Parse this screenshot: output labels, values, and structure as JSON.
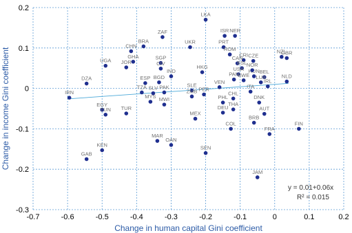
{
  "chart_data": {
    "type": "scatter",
    "title": "",
    "xlabel": "Change in human capital Gini coefficient",
    "ylabel": "Change in income Gini coefficient",
    "xlim": [
      -0.7,
      0.2
    ],
    "ylim": [
      -0.3,
      0.2
    ],
    "xticks": [
      -0.7,
      -0.6,
      -0.5,
      -0.4,
      -0.3,
      -0.2,
      -0.1,
      0,
      0.1,
      0.2
    ],
    "yticks": [
      -0.3,
      -0.2,
      -0.1,
      0,
      0.1,
      0.2
    ],
    "xtick_labels": [
      "-0.7",
      "-0.6",
      "-0.5",
      "-0.4",
      "-0.3",
      "-0.2",
      "-0.1",
      "0",
      "0.1",
      "0.2"
    ],
    "ytick_labels": [
      "-0.3",
      "-0.2",
      "-0.1",
      "0",
      "0.1",
      "0.2"
    ],
    "grid": true,
    "colors": {
      "point": "#1f2f8f",
      "trendline": "#4aa8d8",
      "grid": "#5b9bd5",
      "axis_title": "#2b5aa6"
    },
    "trendline": {
      "intercept": 0.01,
      "slope": 0.06,
      "x_range": [
        -0.6,
        0.04
      ]
    },
    "annotation": {
      "equation": "y = 0.01+0.06x",
      "r2": "R² = 0.015"
    },
    "points": [
      {
        "label": "LKA",
        "x": -0.2,
        "y": 0.17
      },
      {
        "label": "ISR",
        "x": -0.145,
        "y": 0.13
      },
      {
        "label": "NER",
        "x": -0.115,
        "y": 0.13
      },
      {
        "label": "ZAF",
        "x": -0.325,
        "y": 0.127
      },
      {
        "label": "BRA",
        "x": -0.38,
        "y": 0.104
      },
      {
        "label": "UKR",
        "x": -0.245,
        "y": 0.102
      },
      {
        "label": "PRT",
        "x": -0.148,
        "y": 0.102
      },
      {
        "label": "ROM",
        "x": -0.13,
        "y": 0.084
      },
      {
        "label": "CHN",
        "x": -0.416,
        "y": 0.092
      },
      {
        "label": "GHA",
        "x": -0.41,
        "y": 0.066
      },
      {
        "label": "UGA",
        "x": -0.49,
        "y": 0.056
      },
      {
        "label": "JOR",
        "x": -0.43,
        "y": 0.052
      },
      {
        "label": "SGP",
        "x": -0.33,
        "y": 0.063
      },
      {
        "label": "CIV",
        "x": -0.33,
        "y": 0.049
      },
      {
        "label": "IND",
        "x": -0.3,
        "y": 0.03
      },
      {
        "label": "BGD",
        "x": -0.335,
        "y": 0.015
      },
      {
        "label": "ESP",
        "x": -0.375,
        "y": 0.013
      },
      {
        "label": "HKG",
        "x": -0.21,
        "y": 0.04
      },
      {
        "label": "DZA",
        "x": -0.545,
        "y": 0.012
      },
      {
        "label": "IRN",
        "x": -0.595,
        "y": -0.023
      },
      {
        "label": "EGY",
        "x": -0.5,
        "y": -0.053
      },
      {
        "label": "TUN",
        "x": -0.49,
        "y": -0.065
      },
      {
        "label": "TZA",
        "x": -0.385,
        "y": -0.01
      },
      {
        "label": "SLV",
        "x": -0.352,
        "y": -0.012
      },
      {
        "label": "PAK",
        "x": -0.32,
        "y": -0.01
      },
      {
        "label": "TUR",
        "x": -0.43,
        "y": -0.062
      },
      {
        "label": "MYS",
        "x": -0.36,
        "y": -0.033
      },
      {
        "label": "MWI",
        "x": -0.32,
        "y": -0.04
      },
      {
        "label": "SLE",
        "x": -0.24,
        "y": -0.005
      },
      {
        "label": "PER",
        "x": -0.205,
        "y": -0.015
      },
      {
        "label": "ZMB",
        "x": -0.24,
        "y": -0.02
      },
      {
        "label": "VEN",
        "x": -0.16,
        "y": 0.003
      },
      {
        "label": "PHL",
        "x": -0.15,
        "y": -0.035
      },
      {
        "label": "DEU",
        "x": -0.15,
        "y": -0.06
      },
      {
        "label": "MEX",
        "x": -0.23,
        "y": -0.075
      },
      {
        "label": "CHL",
        "x": -0.12,
        "y": -0.025
      },
      {
        "label": "THA",
        "x": -0.12,
        "y": -0.052
      },
      {
        "label": "COL",
        "x": -0.127,
        "y": -0.1
      },
      {
        "label": "BRB",
        "x": -0.06,
        "y": -0.085
      },
      {
        "label": "AUT",
        "x": -0.03,
        "y": -0.063
      },
      {
        "label": "DNK",
        "x": -0.045,
        "y": -0.035
      },
      {
        "label": "MAR",
        "x": -0.34,
        "y": -0.13
      },
      {
        "label": "OAN",
        "x": -0.3,
        "y": -0.14
      },
      {
        "label": "SEN",
        "x": -0.2,
        "y": -0.16
      },
      {
        "label": "KEN",
        "x": -0.5,
        "y": -0.153
      },
      {
        "label": "GAB",
        "x": -0.545,
        "y": -0.175
      },
      {
        "label": "JAM",
        "x": -0.05,
        "y": -0.22
      },
      {
        "label": "FRA",
        "x": -0.015,
        "y": -0.113
      },
      {
        "label": "FIN",
        "x": 0.07,
        "y": -0.1
      },
      {
        "label": "CRI",
        "x": -0.09,
        "y": 0.07
      },
      {
        "label": "CZE",
        "x": -0.062,
        "y": 0.068
      },
      {
        "label": "CAN",
        "x": -0.108,
        "y": 0.062
      },
      {
        "label": "ESL",
        "x": -0.095,
        "y": 0.05
      },
      {
        "label": "USA",
        "x": -0.105,
        "y": 0.035
      },
      {
        "label": "HUN",
        "x": -0.06,
        "y": 0.03
      },
      {
        "label": "NOR",
        "x": -0.065,
        "y": 0.045
      },
      {
        "label": "BEL",
        "x": -0.03,
        "y": 0.028
      },
      {
        "label": "PAN",
        "x": -0.118,
        "y": 0.022
      },
      {
        "label": "SWE",
        "x": -0.09,
        "y": 0.02
      },
      {
        "label": "LUX",
        "x": -0.04,
        "y": 0.015
      },
      {
        "label": "IRL",
        "x": -0.02,
        "y": 0.005
      },
      {
        "label": "ITA",
        "x": -0.07,
        "y": -0.008
      },
      {
        "label": "NZL",
        "x": 0.02,
        "y": 0.078
      },
      {
        "label": "GBR",
        "x": 0.035,
        "y": 0.075
      },
      {
        "label": "NLD",
        "x": 0.035,
        "y": 0.017
      }
    ]
  }
}
